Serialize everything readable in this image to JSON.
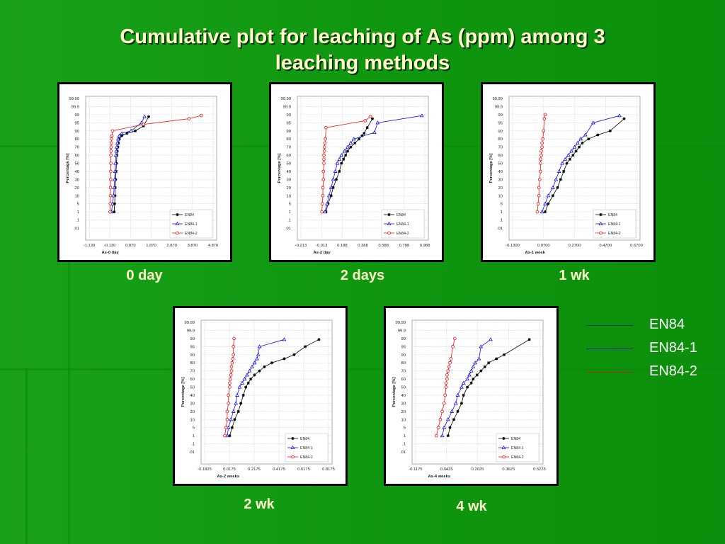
{
  "title": "Cumulative plot for leaching of As (ppm) among 3 leaching methods",
  "title_lines": [
    "Cumulative plot for leaching of As (ppm) among 3",
    "leaching methods"
  ],
  "colors": {
    "EN84": "#000000",
    "EN84-1": "#1010ee",
    "EN84-2": "#ee1010"
  },
  "legend": [
    {
      "label": "EN84",
      "color": "#1f3a6e"
    },
    {
      "label": "EN84-1",
      "color": "#1a1aa8"
    },
    {
      "label": "EN84-2",
      "color": "#b22a10"
    }
  ],
  "chart_data": [
    {
      "type": "scatter",
      "caption": "0 day",
      "xlabel": "As-0 day",
      "ylabel": "Percentage [%]",
      "xticks": [
        "-1.130",
        "-0.130",
        "0.870",
        "1.870",
        "2.870",
        "3.870",
        "4.870"
      ],
      "xlim": [
        -1.13,
        4.87
      ],
      "yticks": [
        "99.99",
        "99.9",
        "99",
        "95",
        "90",
        "80",
        "70",
        "60",
        "50",
        "40",
        "30",
        "20",
        "10",
        "5",
        "1",
        ".1",
        ".01"
      ],
      "legend_entries": [
        "EN84",
        "EN84-1",
        "EN84-2"
      ],
      "series": [
        {
          "name": "EN84",
          "x": [
            0.08,
            0.1,
            0.12,
            0.13,
            0.15,
            0.17,
            0.19,
            0.21,
            0.23,
            0.26,
            0.29,
            0.33,
            0.45,
            0.7,
            1.1,
            1.5,
            1.75
          ],
          "y": [
            1,
            5,
            10,
            20,
            30,
            40,
            50,
            60,
            65,
            70,
            75,
            80,
            84,
            87,
            90,
            93,
            98
          ]
        },
        {
          "name": "EN84-1",
          "x": [
            -0.05,
            0.0,
            0.05,
            0.08,
            0.1,
            0.12,
            0.14,
            0.16,
            0.18,
            0.2,
            0.23,
            0.27,
            0.33,
            0.45,
            0.9,
            1.4,
            1.55
          ],
          "y": [
            1,
            5,
            10,
            20,
            30,
            40,
            50,
            60,
            65,
            70,
            75,
            80,
            84,
            87,
            90,
            95,
            98
          ]
        },
        {
          "name": "EN84-2",
          "x": [
            -0.12,
            -0.11,
            -0.1,
            -0.1,
            -0.09,
            -0.09,
            -0.08,
            -0.08,
            -0.07,
            -0.07,
            -0.06,
            -0.05,
            -0.03,
            0.0,
            1.5,
            3.7,
            4.3
          ],
          "y": [
            1,
            5,
            10,
            20,
            30,
            40,
            50,
            60,
            65,
            70,
            75,
            80,
            84,
            90,
            94,
            97,
            98.6
          ]
        }
      ]
    },
    {
      "type": "scatter",
      "caption": "2 days",
      "xlabel": "As-2 day",
      "ylabel": "Percentage [%]",
      "xticks": [
        "-0.213",
        "-0.013",
        "0.188",
        "0.388",
        "0.588",
        "0.788",
        "0.988"
      ],
      "xlim": [
        -0.213,
        0.988
      ],
      "yticks": [
        "99.99",
        "99.9",
        "99",
        "95",
        "90",
        "80",
        "70",
        "60",
        "50",
        "40",
        "30",
        "20",
        "10",
        "5",
        "1",
        ".1",
        ".01"
      ],
      "legend_entries": [
        "EN84",
        "EN84-1",
        "EN84-2"
      ],
      "series": [
        {
          "name": "EN84",
          "x": [
            0.03,
            0.05,
            0.08,
            0.1,
            0.13,
            0.16,
            0.18,
            0.2,
            0.22,
            0.24,
            0.27,
            0.31,
            0.35,
            0.38,
            0.4,
            0.43,
            0.48
          ],
          "y": [
            1,
            5,
            10,
            20,
            30,
            40,
            50,
            55,
            60,
            65,
            70,
            75,
            80,
            84,
            87,
            92,
            97
          ]
        },
        {
          "name": "EN84-1",
          "x": [
            0.02,
            0.04,
            0.06,
            0.08,
            0.1,
            0.12,
            0.14,
            0.16,
            0.18,
            0.21,
            0.24,
            0.27,
            0.3,
            0.5,
            0.53,
            0.96
          ],
          "y": [
            1,
            5,
            10,
            20,
            30,
            40,
            50,
            55,
            60,
            65,
            70,
            75,
            80,
            88,
            95,
            98.5
          ]
        },
        {
          "name": "EN84-2",
          "x": [
            -0.01,
            -0.005,
            0.0,
            0.0,
            0.005,
            0.005,
            0.01,
            0.01,
            0.01,
            0.015,
            0.015,
            0.02,
            0.025,
            0.03,
            0.41,
            0.46
          ],
          "y": [
            1,
            5,
            10,
            20,
            30,
            40,
            50,
            55,
            60,
            65,
            70,
            75,
            80,
            92,
            96,
            98
          ]
        }
      ]
    },
    {
      "type": "scatter",
      "caption": "1 wk",
      "xlabel": "As-1 week",
      "ylabel": "Percentage [%]",
      "xticks": [
        "-0.1300",
        "0.0700",
        "0.2700",
        "0.4700",
        "0.6700"
      ],
      "xlim": [
        -0.13,
        0.67
      ],
      "yticks": [
        "99.99",
        "99.9",
        "99",
        "95",
        "90",
        "80",
        "70",
        "60",
        "50",
        "40",
        "30",
        "20",
        "10",
        "5",
        "1",
        ".1",
        ".01"
      ],
      "legend_entries": [
        "EN84",
        "EN84-1",
        "EN84-2"
      ],
      "series": [
        {
          "name": "EN84",
          "x": [
            0.08,
            0.1,
            0.13,
            0.16,
            0.18,
            0.2,
            0.22,
            0.24,
            0.26,
            0.28,
            0.3,
            0.32,
            0.36,
            0.42,
            0.5,
            0.59
          ],
          "y": [
            1,
            5,
            10,
            20,
            30,
            40,
            50,
            55,
            60,
            65,
            70,
            75,
            80,
            85,
            90,
            97
          ]
        },
        {
          "name": "EN84-1",
          "x": [
            0.06,
            0.08,
            0.1,
            0.13,
            0.15,
            0.17,
            0.19,
            0.21,
            0.23,
            0.25,
            0.27,
            0.29,
            0.31,
            0.34,
            0.39,
            0.56
          ],
          "y": [
            1,
            5,
            10,
            20,
            30,
            40,
            50,
            55,
            60,
            65,
            70,
            75,
            80,
            85,
            95,
            98.5
          ]
        },
        {
          "name": "EN84-2",
          "x": [
            0.03,
            0.035,
            0.04,
            0.04,
            0.045,
            0.05,
            0.05,
            0.05,
            0.055,
            0.055,
            0.06,
            0.06,
            0.065,
            0.07,
            0.075,
            0.08
          ],
          "y": [
            1,
            5,
            10,
            20,
            30,
            40,
            50,
            55,
            60,
            65,
            70,
            75,
            80,
            90,
            97,
            99
          ]
        }
      ]
    },
    {
      "type": "scatter",
      "caption": "2 wk",
      "xlabel": "As-2 weeks",
      "ylabel": "Percentage [%]",
      "xticks": [
        "-0.1825",
        "0.0175",
        "0.2175",
        "0.4175",
        "0.6175",
        "0.8175"
      ],
      "xlim": [
        -0.1825,
        0.8175
      ],
      "yticks": [
        "99.99",
        "99.9",
        "99",
        "95",
        "90",
        "80",
        "70",
        "60",
        "50",
        "40",
        "30",
        "20",
        "10",
        "5",
        "1",
        ".1",
        ".01"
      ],
      "legend_entries": [
        "EN84",
        "EN84-1",
        "EN84-2"
      ],
      "series": [
        {
          "name": "EN84",
          "x": [
            0.02,
            0.04,
            0.06,
            0.09,
            0.11,
            0.13,
            0.15,
            0.17,
            0.19,
            0.22,
            0.26,
            0.3,
            0.36,
            0.46,
            0.54,
            0.63,
            0.74
          ],
          "y": [
            1,
            5,
            10,
            20,
            30,
            40,
            50,
            55,
            60,
            65,
            70,
            75,
            80,
            85,
            90,
            95,
            98.5
          ]
        },
        {
          "name": "EN84-1",
          "x": [
            0.0,
            0.01,
            0.03,
            0.05,
            0.07,
            0.08,
            0.1,
            0.12,
            0.14,
            0.16,
            0.18,
            0.2,
            0.22,
            0.24,
            0.25,
            0.26,
            0.46
          ],
          "y": [
            1,
            5,
            10,
            20,
            30,
            40,
            50,
            55,
            60,
            65,
            70,
            75,
            80,
            85,
            90,
            95,
            98.5
          ]
        },
        {
          "name": "EN84-2",
          "x": [
            -0.02,
            -0.01,
            0.0,
            0.0,
            0.01,
            0.01,
            0.02,
            0.02,
            0.025,
            0.03,
            0.035,
            0.035,
            0.04,
            0.045,
            0.05,
            0.05,
            0.055
          ],
          "y": [
            1,
            5,
            10,
            20,
            30,
            40,
            50,
            55,
            60,
            65,
            70,
            75,
            80,
            85,
            90,
            95,
            99
          ]
        }
      ]
    },
    {
      "type": "scatter",
      "caption": "4 wk",
      "xlabel": "As-4 weeks",
      "ylabel": "Percentage [%]",
      "xticks": [
        "-0.1175",
        "0.0425",
        "0.2025",
        "0.3625",
        "0.5225"
      ],
      "xlim": [
        -0.1175,
        0.5225
      ],
      "yticks": [
        "99.99",
        "99.9",
        "99",
        "95",
        "90",
        "80",
        "70",
        "60",
        "50",
        "40",
        "30",
        "20",
        "10",
        "5",
        "1",
        ".1",
        ".01"
      ],
      "legend_entries": [
        "EN84",
        "EN84-1",
        "EN84-2"
      ],
      "series": [
        {
          "name": "EN84",
          "x": [
            0.05,
            0.06,
            0.08,
            0.1,
            0.12,
            0.13,
            0.15,
            0.17,
            0.18,
            0.2,
            0.22,
            0.24,
            0.26,
            0.3,
            0.34,
            0.47
          ],
          "y": [
            1,
            5,
            10,
            20,
            30,
            40,
            50,
            55,
            60,
            65,
            70,
            75,
            80,
            85,
            90,
            98.5
          ]
        },
        {
          "name": "EN84-1",
          "x": [
            0.02,
            0.03,
            0.05,
            0.07,
            0.09,
            0.1,
            0.12,
            0.13,
            0.15,
            0.16,
            0.17,
            0.18,
            0.19,
            0.21,
            0.22,
            0.27
          ],
          "y": [
            1,
            5,
            10,
            20,
            30,
            40,
            50,
            55,
            60,
            65,
            70,
            75,
            80,
            85,
            95,
            98.5
          ]
        },
        {
          "name": "EN84-2",
          "x": [
            -0.01,
            0.0,
            0.01,
            0.02,
            0.03,
            0.035,
            0.04,
            0.04,
            0.045,
            0.045,
            0.05,
            0.055,
            0.06,
            0.065,
            0.075,
            0.085
          ],
          "y": [
            1,
            5,
            10,
            20,
            30,
            40,
            50,
            55,
            60,
            65,
            70,
            75,
            80,
            85,
            95,
            99
          ]
        }
      ]
    }
  ]
}
